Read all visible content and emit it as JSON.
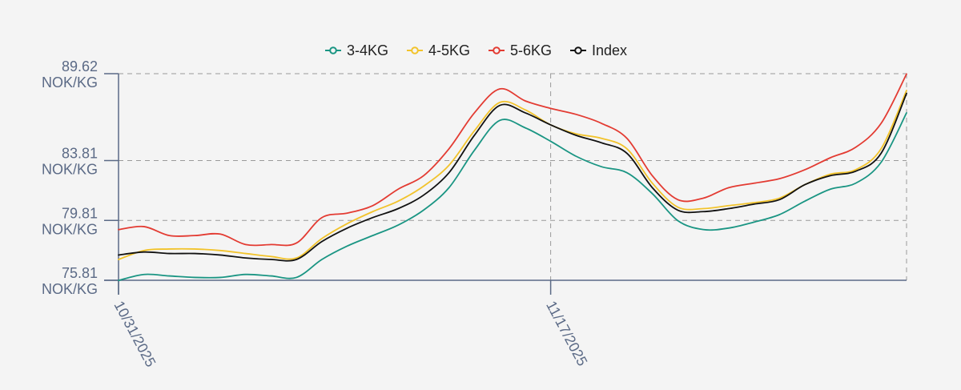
{
  "chart_data": {
    "type": "line",
    "y_unit": "NOK/KG",
    "yticks": [
      75.81,
      79.81,
      83.81,
      89.62
    ],
    "ylim": [
      75.81,
      89.62
    ],
    "x_tick_labels": [
      "10/31/2025",
      "11/17/2025"
    ],
    "x_ticks": [
      0,
      17
    ],
    "x": [
      0,
      1,
      2,
      3,
      4,
      5,
      6,
      7,
      8,
      9,
      10,
      11,
      12,
      13,
      14,
      15,
      16,
      17,
      18,
      19,
      20,
      21,
      22,
      23,
      24,
      25,
      26,
      27,
      28,
      29,
      30,
      31
    ],
    "grid": true,
    "legend_position": "top-center",
    "series": [
      {
        "name": "3-4KG",
        "color": "#1a9583",
        "values": [
          75.8,
          76.2,
          76.1,
          76.0,
          76.0,
          76.2,
          76.1,
          76.0,
          77.2,
          78.1,
          78.8,
          79.5,
          80.5,
          82.0,
          84.5,
          86.5,
          86.0,
          85.1,
          84.1,
          83.4,
          83.0,
          81.6,
          79.8,
          79.2,
          79.3,
          79.7,
          80.2,
          81.1,
          81.9,
          82.3,
          83.7,
          87.0
        ]
      },
      {
        "name": "4-5KG",
        "color": "#f2c32b",
        "values": [
          77.2,
          77.8,
          77.9,
          77.9,
          77.8,
          77.6,
          77.4,
          77.3,
          78.6,
          79.6,
          80.4,
          81.1,
          82.1,
          83.5,
          85.8,
          87.7,
          87.2,
          86.2,
          85.6,
          85.3,
          84.6,
          82.3,
          80.7,
          80.6,
          80.8,
          81.0,
          81.3,
          82.2,
          82.9,
          83.2,
          84.6,
          88.5
        ]
      },
      {
        "name": "5-6KG",
        "color": "#e33b32",
        "values": [
          79.2,
          79.4,
          78.8,
          78.8,
          78.9,
          78.2,
          78.2,
          78.3,
          80.0,
          80.3,
          80.8,
          81.9,
          82.8,
          84.6,
          87.0,
          88.6,
          87.8,
          87.3,
          86.9,
          86.3,
          85.3,
          82.8,
          81.2,
          81.3,
          82.0,
          82.3,
          82.6,
          83.2,
          84.0,
          84.7,
          86.3,
          89.6
        ]
      },
      {
        "name": "Index",
        "color": "#111111",
        "values": [
          77.5,
          77.7,
          77.6,
          77.6,
          77.5,
          77.3,
          77.2,
          77.2,
          78.4,
          79.3,
          80.0,
          80.6,
          81.5,
          83.0,
          85.5,
          87.5,
          87.0,
          86.2,
          85.5,
          85.0,
          84.3,
          82.0,
          80.5,
          80.4,
          80.6,
          80.9,
          81.2,
          82.2,
          82.8,
          83.1,
          84.3,
          88.3
        ]
      }
    ]
  }
}
